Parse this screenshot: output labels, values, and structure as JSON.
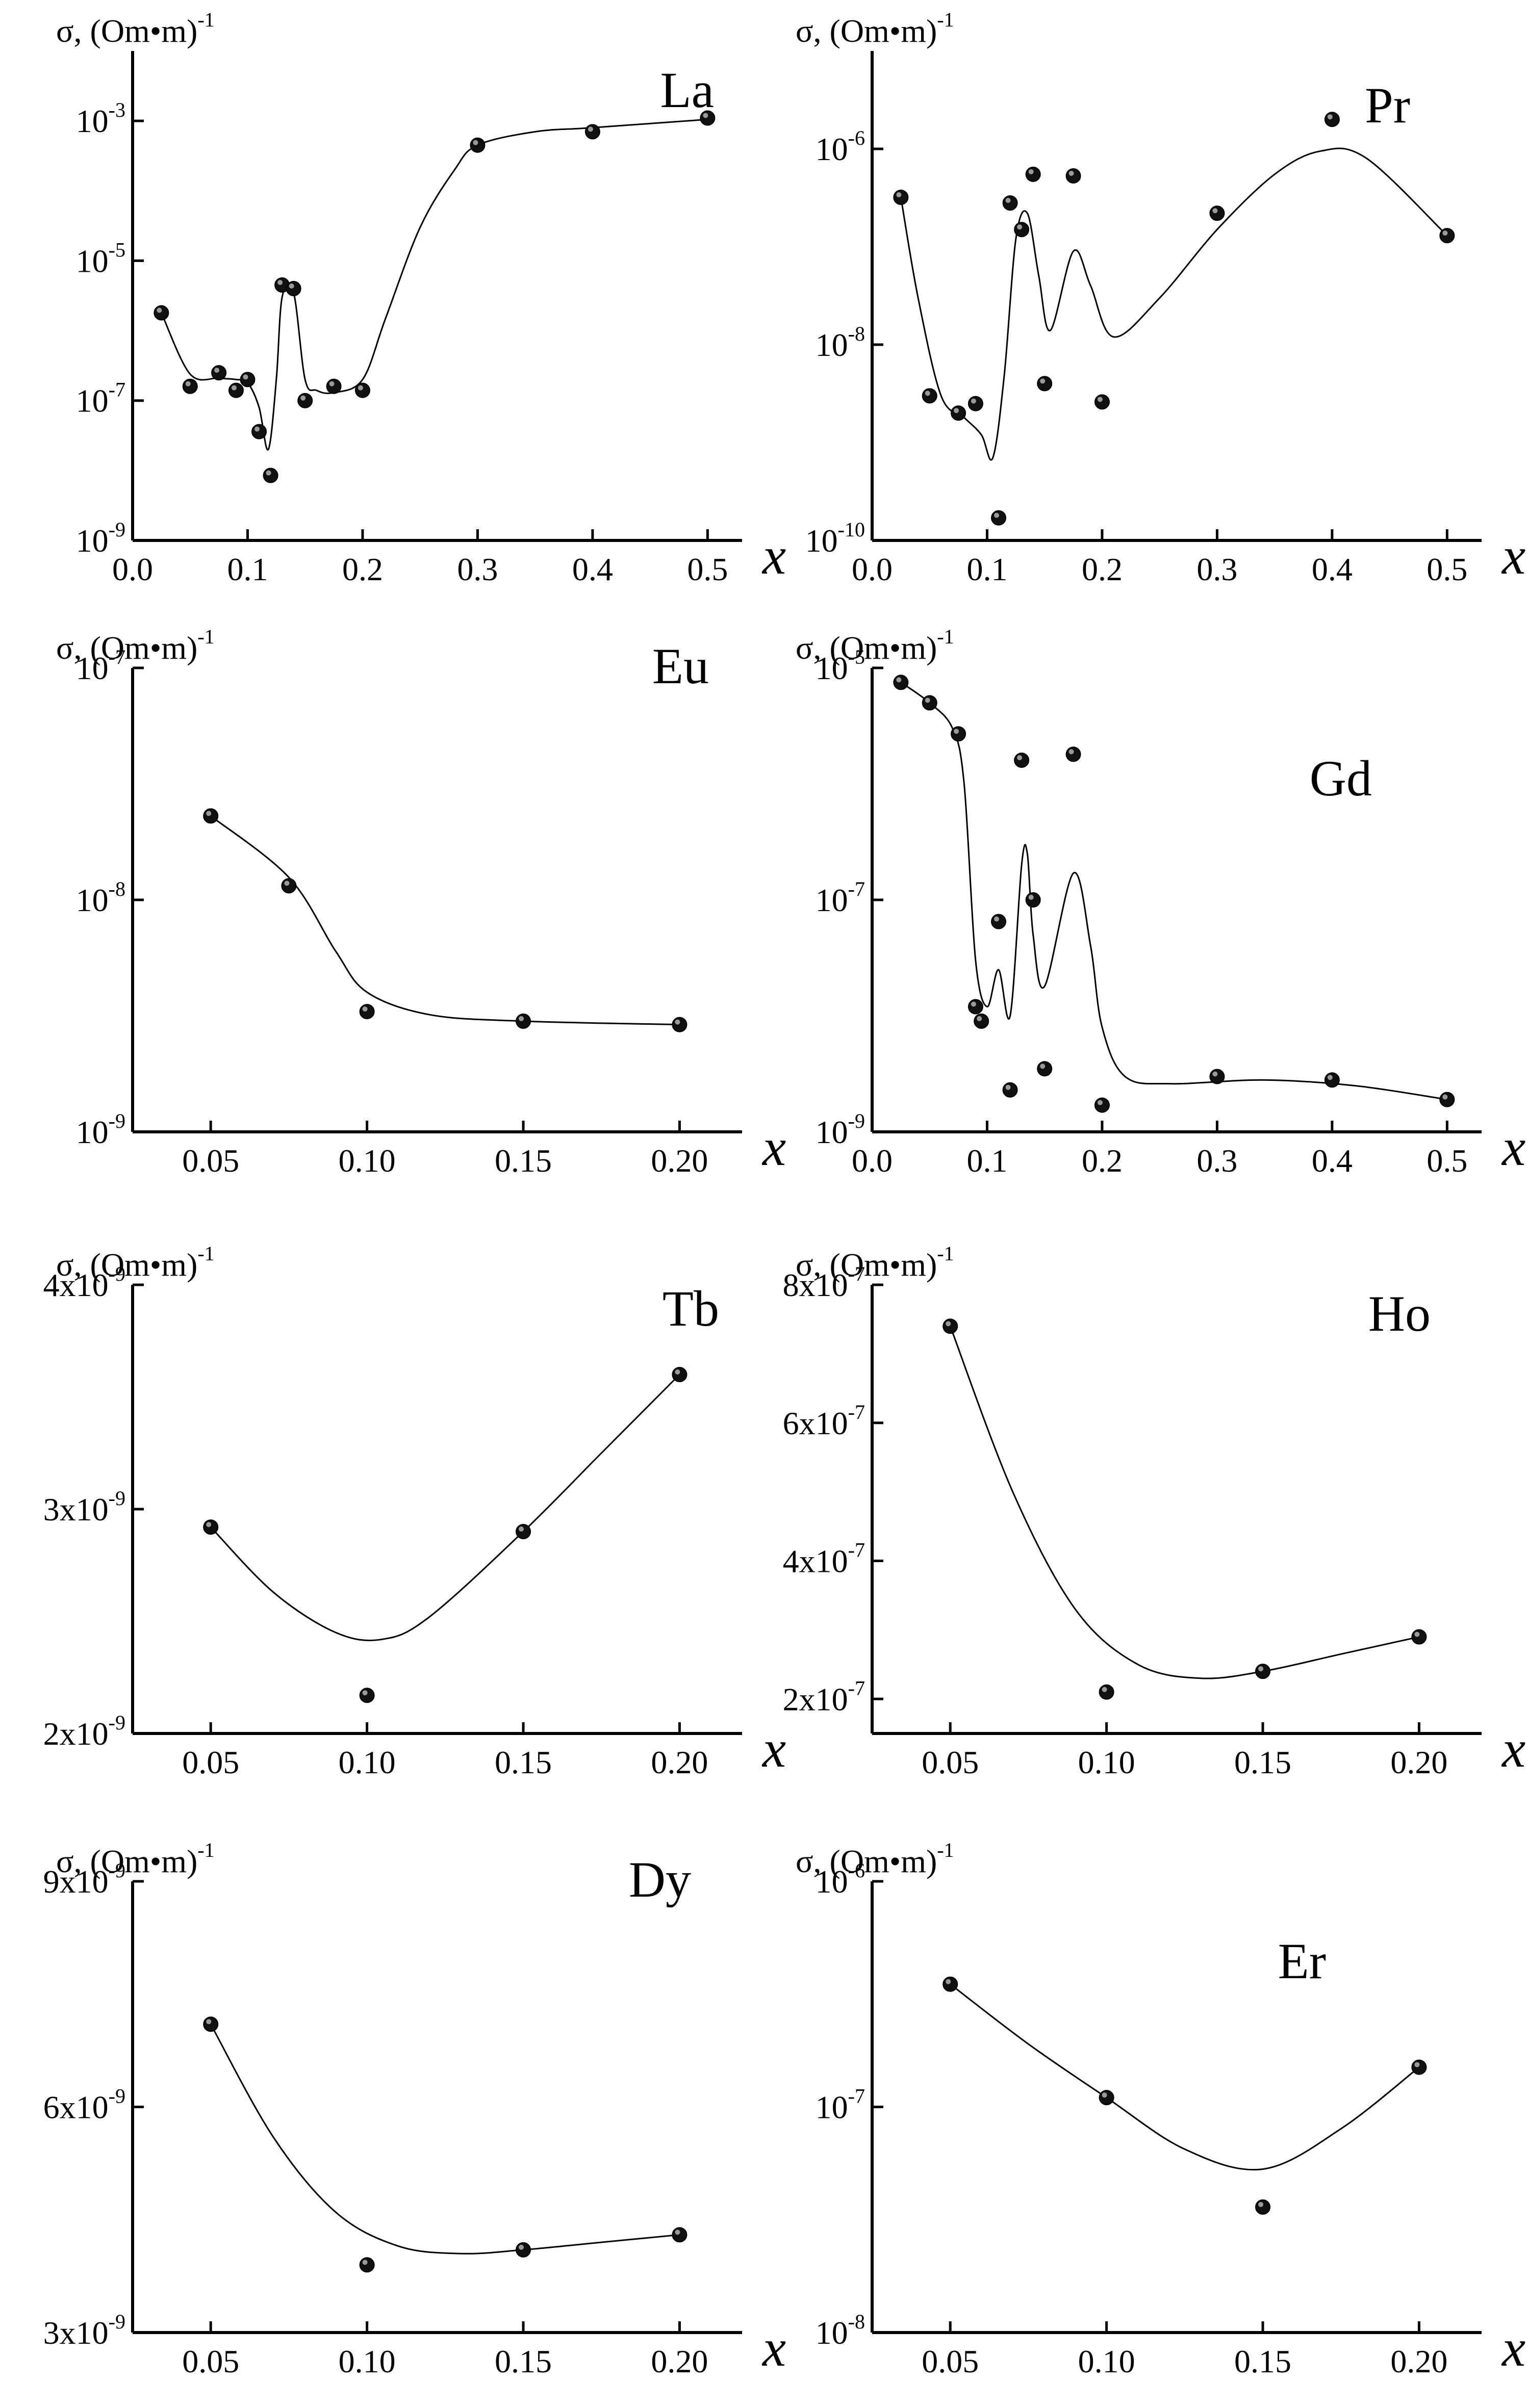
{
  "figure": {
    "ylabel_text": "σ, (Om•m)",
    "ylabel_exponent": "-1",
    "xlabel": "x"
  },
  "chart_data": [
    {
      "id": "la",
      "type": "scatter",
      "element": "La",
      "scale": "log",
      "ylabel": "σ, (Om•m)",
      "ylabel_exp": "-1",
      "xlabel": "x",
      "xlim": [
        0,
        0.53
      ],
      "ylim": [
        1e-09,
        0.01
      ],
      "xticks": [
        {
          "v": 0.0,
          "label": "0.0"
        },
        {
          "v": 0.1,
          "label": "0.1"
        },
        {
          "v": 0.2,
          "label": "0.2"
        },
        {
          "v": 0.3,
          "label": "0.3"
        },
        {
          "v": 0.4,
          "label": "0.4"
        },
        {
          "v": 0.5,
          "label": "0.5"
        }
      ],
      "yticks": [
        {
          "v": 1e-09,
          "mant": "10",
          "exp": "-9"
        },
        {
          "v": 1e-07,
          "mant": "10",
          "exp": "-7"
        },
        {
          "v": 1e-05,
          "mant": "10",
          "exp": "-5"
        },
        {
          "v": 0.001,
          "mant": "10",
          "exp": "-3"
        }
      ],
      "points": [
        [
          0.025,
          1.8e-06
        ],
        [
          0.05,
          1.6e-07
        ],
        [
          0.075,
          2.5e-07
        ],
        [
          0.09,
          1.4e-07
        ],
        [
          0.1,
          2e-07
        ],
        [
          0.11,
          3.6e-08
        ],
        [
          0.12,
          8.5e-09
        ],
        [
          0.13,
          4.5e-06
        ],
        [
          0.14,
          4e-06
        ],
        [
          0.15,
          1e-07
        ],
        [
          0.175,
          1.6e-07
        ],
        [
          0.2,
          1.4e-07
        ],
        [
          0.3,
          0.00045
        ],
        [
          0.4,
          0.0007
        ],
        [
          0.5,
          0.0011
        ]
      ],
      "curve": [
        [
          0.025,
          1.8e-06
        ],
        [
          0.05,
          2.4e-07
        ],
        [
          0.075,
          2.1e-07
        ],
        [
          0.09,
          2e-07
        ],
        [
          0.1,
          1.8e-07
        ],
        [
          0.11,
          8e-08
        ],
        [
          0.118,
          2e-08
        ],
        [
          0.125,
          2e-07
        ],
        [
          0.13,
          3e-06
        ],
        [
          0.14,
          3.5e-06
        ],
        [
          0.15,
          2e-07
        ],
        [
          0.16,
          1.4e-07
        ],
        [
          0.175,
          1.3e-07
        ],
        [
          0.2,
          2e-07
        ],
        [
          0.22,
          1.5e-06
        ],
        [
          0.25,
          3e-05
        ],
        [
          0.28,
          0.0002
        ],
        [
          0.3,
          0.00045
        ],
        [
          0.35,
          0.0007
        ],
        [
          0.4,
          0.0008
        ],
        [
          0.5,
          0.00105
        ]
      ]
    },
    {
      "id": "pr",
      "type": "scatter",
      "element": "Pr",
      "scale": "log",
      "ylabel": "σ, (Om•m)",
      "ylabel_exp": "-1",
      "xlabel": "x",
      "xlim": [
        0,
        0.53
      ],
      "ylim": [
        1e-10,
        1e-05
      ],
      "xticks": [
        {
          "v": 0.0,
          "label": "0.0"
        },
        {
          "v": 0.1,
          "label": "0.1"
        },
        {
          "v": 0.2,
          "label": "0.2"
        },
        {
          "v": 0.3,
          "label": "0.3"
        },
        {
          "v": 0.4,
          "label": "0.4"
        },
        {
          "v": 0.5,
          "label": "0.5"
        }
      ],
      "yticks": [
        {
          "v": 1e-10,
          "mant": "10",
          "exp": "-10"
        },
        {
          "v": 1e-08,
          "mant": "10",
          "exp": "-8"
        },
        {
          "v": 1e-06,
          "mant": "10",
          "exp": "-6"
        }
      ],
      "points": [
        [
          0.025,
          3.2e-07
        ],
        [
          0.05,
          3e-09
        ],
        [
          0.075,
          2e-09
        ],
        [
          0.09,
          2.5e-09
        ],
        [
          0.11,
          1.7e-10
        ],
        [
          0.12,
          2.8e-07
        ],
        [
          0.13,
          1.5e-07
        ],
        [
          0.14,
          5.5e-07
        ],
        [
          0.15,
          4e-09
        ],
        [
          0.175,
          5.3e-07
        ],
        [
          0.2,
          2.6e-09
        ],
        [
          0.3,
          2.2e-07
        ],
        [
          0.4,
          2e-06
        ],
        [
          0.5,
          1.3e-07
        ]
      ],
      "curve": [
        [
          0.025,
          3.2e-07
        ],
        [
          0.04,
          3e-08
        ],
        [
          0.06,
          3e-09
        ],
        [
          0.08,
          1.8e-09
        ],
        [
          0.095,
          1.2e-09
        ],
        [
          0.105,
          7e-10
        ],
        [
          0.115,
          5e-09
        ],
        [
          0.125,
          1.2e-07
        ],
        [
          0.135,
          2.2e-07
        ],
        [
          0.145,
          5e-08
        ],
        [
          0.155,
          1.4e-08
        ],
        [
          0.175,
          9e-08
        ],
        [
          0.19,
          4e-08
        ],
        [
          0.21,
          1.2e-08
        ],
        [
          0.25,
          3e-08
        ],
        [
          0.3,
          1.5e-07
        ],
        [
          0.35,
          5.5e-07
        ],
        [
          0.39,
          9.5e-07
        ],
        [
          0.43,
          8e-07
        ],
        [
          0.5,
          1.3e-07
        ]
      ]
    },
    {
      "id": "eu",
      "type": "scatter",
      "element": "Eu",
      "scale": "log",
      "ylabel": "σ, (Om•m)",
      "ylabel_exp": "-1",
      "xlabel": "x",
      "xlim": [
        0.025,
        0.22
      ],
      "ylim": [
        1e-09,
        1e-07
      ],
      "xticks": [
        {
          "v": 0.05,
          "label": "0.05"
        },
        {
          "v": 0.1,
          "label": "0.10"
        },
        {
          "v": 0.15,
          "label": "0.15"
        },
        {
          "v": 0.2,
          "label": "0.20"
        }
      ],
      "yticks": [
        {
          "v": 1e-09,
          "mant": "10",
          "exp": "-9"
        },
        {
          "v": 1e-08,
          "mant": "10",
          "exp": "-8"
        },
        {
          "v": 1e-07,
          "mant": "10",
          "exp": "-7"
        }
      ],
      "points": [
        [
          0.05,
          2.3e-08
        ],
        [
          0.075,
          1.15e-08
        ],
        [
          0.1,
          3.3e-09
        ],
        [
          0.15,
          3e-09
        ],
        [
          0.2,
          2.9e-09
        ]
      ],
      "curve": [
        [
          0.05,
          2.3e-08
        ],
        [
          0.075,
          1.25e-08
        ],
        [
          0.09,
          6e-09
        ],
        [
          0.1,
          4e-09
        ],
        [
          0.12,
          3.2e-09
        ],
        [
          0.15,
          3e-09
        ],
        [
          0.2,
          2.9e-09
        ]
      ]
    },
    {
      "id": "gd",
      "type": "scatter",
      "element": "Gd",
      "scale": "log",
      "ylabel": "σ, (Om•m)",
      "ylabel_exp": "-1",
      "xlabel": "x",
      "xlim": [
        0,
        0.53
      ],
      "ylim": [
        1e-09,
        1e-05
      ],
      "xticks": [
        {
          "v": 0.0,
          "label": "0.0"
        },
        {
          "v": 0.1,
          "label": "0.1"
        },
        {
          "v": 0.2,
          "label": "0.2"
        },
        {
          "v": 0.3,
          "label": "0.3"
        },
        {
          "v": 0.4,
          "label": "0.4"
        },
        {
          "v": 0.5,
          "label": "0.5"
        }
      ],
      "yticks": [
        {
          "v": 1e-09,
          "mant": "10",
          "exp": "-9"
        },
        {
          "v": 1e-07,
          "mant": "10",
          "exp": "-7"
        },
        {
          "v": 1e-05,
          "mant": "10",
          "exp": "-5"
        }
      ],
      "points": [
        [
          0.025,
          7.5e-06
        ],
        [
          0.05,
          5e-06
        ],
        [
          0.075,
          2.7e-06
        ],
        [
          0.09,
          1.2e-08
        ],
        [
          0.095,
          9e-09
        ],
        [
          0.11,
          6.5e-08
        ],
        [
          0.12,
          2.3e-09
        ],
        [
          0.13,
          1.6e-06
        ],
        [
          0.14,
          1e-07
        ],
        [
          0.15,
          3.5e-09
        ],
        [
          0.175,
          1.8e-06
        ],
        [
          0.2,
          1.7e-09
        ],
        [
          0.3,
          3e-09
        ],
        [
          0.4,
          2.8e-09
        ],
        [
          0.5,
          1.9e-09
        ]
      ],
      "curve": [
        [
          0.025,
          7.5e-06
        ],
        [
          0.05,
          5e-06
        ],
        [
          0.07,
          3e-06
        ],
        [
          0.08,
          1e-06
        ],
        [
          0.09,
          3e-08
        ],
        [
          0.1,
          1.2e-08
        ],
        [
          0.11,
          2.5e-08
        ],
        [
          0.12,
          1e-08
        ],
        [
          0.13,
          2e-07
        ],
        [
          0.135,
          2.5e-07
        ],
        [
          0.14,
          5e-08
        ],
        [
          0.15,
          1.8e-08
        ],
        [
          0.175,
          1.7e-07
        ],
        [
          0.19,
          4e-08
        ],
        [
          0.2,
          8e-09
        ],
        [
          0.22,
          3e-09
        ],
        [
          0.26,
          2.6e-09
        ],
        [
          0.34,
          2.8e-09
        ],
        [
          0.42,
          2.5e-09
        ],
        [
          0.5,
          1.9e-09
        ]
      ]
    },
    {
      "id": "tb",
      "type": "scatter",
      "element": "Tb",
      "scale": "linear",
      "ylabel": "σ, (Om•m)",
      "ylabel_exp": "-1",
      "xlabel": "x",
      "xlim": [
        0.025,
        0.22
      ],
      "ylim": [
        2e-09,
        4e-09
      ],
      "xticks": [
        {
          "v": 0.05,
          "label": "0.05"
        },
        {
          "v": 0.1,
          "label": "0.10"
        },
        {
          "v": 0.15,
          "label": "0.15"
        },
        {
          "v": 0.2,
          "label": "0.20"
        }
      ],
      "yticks": [
        {
          "v": 2e-09,
          "mant": "2x10",
          "exp": "-9"
        },
        {
          "v": 3e-09,
          "mant": "3x10",
          "exp": "-9"
        },
        {
          "v": 4e-09,
          "mant": "4x10",
          "exp": "-9"
        }
      ],
      "points": [
        [
          0.05,
          2.92e-09
        ],
        [
          0.1,
          2.17e-09
        ],
        [
          0.15,
          2.9e-09
        ],
        [
          0.2,
          3.6e-09
        ]
      ],
      "curve": [
        [
          0.05,
          2.92e-09
        ],
        [
          0.07,
          2.63e-09
        ],
        [
          0.09,
          2.45e-09
        ],
        [
          0.105,
          2.42e-09
        ],
        [
          0.12,
          2.52e-09
        ],
        [
          0.15,
          2.9e-09
        ],
        [
          0.175,
          3.25e-09
        ],
        [
          0.2,
          3.6e-09
        ]
      ]
    },
    {
      "id": "ho",
      "type": "scatter",
      "element": "Ho",
      "scale": "linear",
      "ylabel": "σ, (Om•m)",
      "ylabel_exp": "-1",
      "xlabel": "x",
      "xlim": [
        0.025,
        0.22
      ],
      "ylim": [
        1.5e-07,
        8e-07
      ],
      "xticks": [
        {
          "v": 0.05,
          "label": "0.05"
        },
        {
          "v": 0.1,
          "label": "0.10"
        },
        {
          "v": 0.15,
          "label": "0.15"
        },
        {
          "v": 0.2,
          "label": "0.20"
        }
      ],
      "yticks": [
        {
          "v": 2e-07,
          "mant": "2x10",
          "exp": "-7"
        },
        {
          "v": 4e-07,
          "mant": "4x10",
          "exp": "-7"
        },
        {
          "v": 6e-07,
          "mant": "6x10",
          "exp": "-7"
        },
        {
          "v": 8e-07,
          "mant": "8x10",
          "exp": "-7"
        }
      ],
      "points": [
        [
          0.05,
          7.4e-07
        ],
        [
          0.1,
          2.1e-07
        ],
        [
          0.15,
          2.4e-07
        ],
        [
          0.2,
          2.9e-07
        ]
      ],
      "curve": [
        [
          0.05,
          7.4e-07
        ],
        [
          0.07,
          5e-07
        ],
        [
          0.09,
          3.3e-07
        ],
        [
          0.11,
          2.5e-07
        ],
        [
          0.13,
          2.3e-07
        ],
        [
          0.15,
          2.4e-07
        ],
        [
          0.175,
          2.65e-07
        ],
        [
          0.2,
          2.9e-07
        ]
      ]
    },
    {
      "id": "dy",
      "type": "scatter",
      "element": "Dy",
      "scale": "linear",
      "ylabel": "σ, (Om•m)",
      "ylabel_exp": "-1",
      "xlabel": "x",
      "xlim": [
        0.025,
        0.22
      ],
      "ylim": [
        3e-09,
        9e-09
      ],
      "xticks": [
        {
          "v": 0.05,
          "label": "0.05"
        },
        {
          "v": 0.1,
          "label": "0.10"
        },
        {
          "v": 0.15,
          "label": "0.15"
        },
        {
          "v": 0.2,
          "label": "0.20"
        }
      ],
      "yticks": [
        {
          "v": 3e-09,
          "mant": "3x10",
          "exp": "-9"
        },
        {
          "v": 6e-09,
          "mant": "6x10",
          "exp": "-9"
        },
        {
          "v": 9e-09,
          "mant": "9x10",
          "exp": "-9"
        }
      ],
      "points": [
        [
          0.05,
          7.1e-09
        ],
        [
          0.1,
          3.9e-09
        ],
        [
          0.15,
          4.1e-09
        ],
        [
          0.2,
          4.3e-09
        ]
      ],
      "curve": [
        [
          0.05,
          7.1e-09
        ],
        [
          0.07,
          5.6e-09
        ],
        [
          0.09,
          4.6e-09
        ],
        [
          0.11,
          4.15e-09
        ],
        [
          0.13,
          4.05e-09
        ],
        [
          0.15,
          4.1e-09
        ],
        [
          0.175,
          4.2e-09
        ],
        [
          0.2,
          4.3e-09
        ]
      ]
    },
    {
      "id": "er",
      "type": "scatter",
      "element": "Er",
      "scale": "log",
      "ylabel": "σ, (Om•m)",
      "ylabel_exp": "-1",
      "xlabel": "x",
      "xlim": [
        0.025,
        0.22
      ],
      "ylim": [
        1e-08,
        1e-06
      ],
      "xticks": [
        {
          "v": 0.05,
          "label": "0.05"
        },
        {
          "v": 0.1,
          "label": "0.10"
        },
        {
          "v": 0.15,
          "label": "0.15"
        },
        {
          "v": 0.2,
          "label": "0.20"
        }
      ],
      "yticks": [
        {
          "v": 1e-08,
          "mant": "10",
          "exp": "-8"
        },
        {
          "v": 1e-07,
          "mant": "10",
          "exp": "-7"
        },
        {
          "v": 1e-06,
          "mant": "10",
          "exp": "-6"
        }
      ],
      "points": [
        [
          0.05,
          3.5e-07
        ],
        [
          0.1,
          1.1e-07
        ],
        [
          0.15,
          3.6e-08
        ],
        [
          0.2,
          1.5e-07
        ]
      ],
      "curve": [
        [
          0.05,
          3.5e-07
        ],
        [
          0.075,
          1.9e-07
        ],
        [
          0.1,
          1.1e-07
        ],
        [
          0.125,
          6.5e-08
        ],
        [
          0.15,
          5.3e-08
        ],
        [
          0.175,
          8e-08
        ],
        [
          0.2,
          1.5e-07
        ]
      ]
    }
  ]
}
